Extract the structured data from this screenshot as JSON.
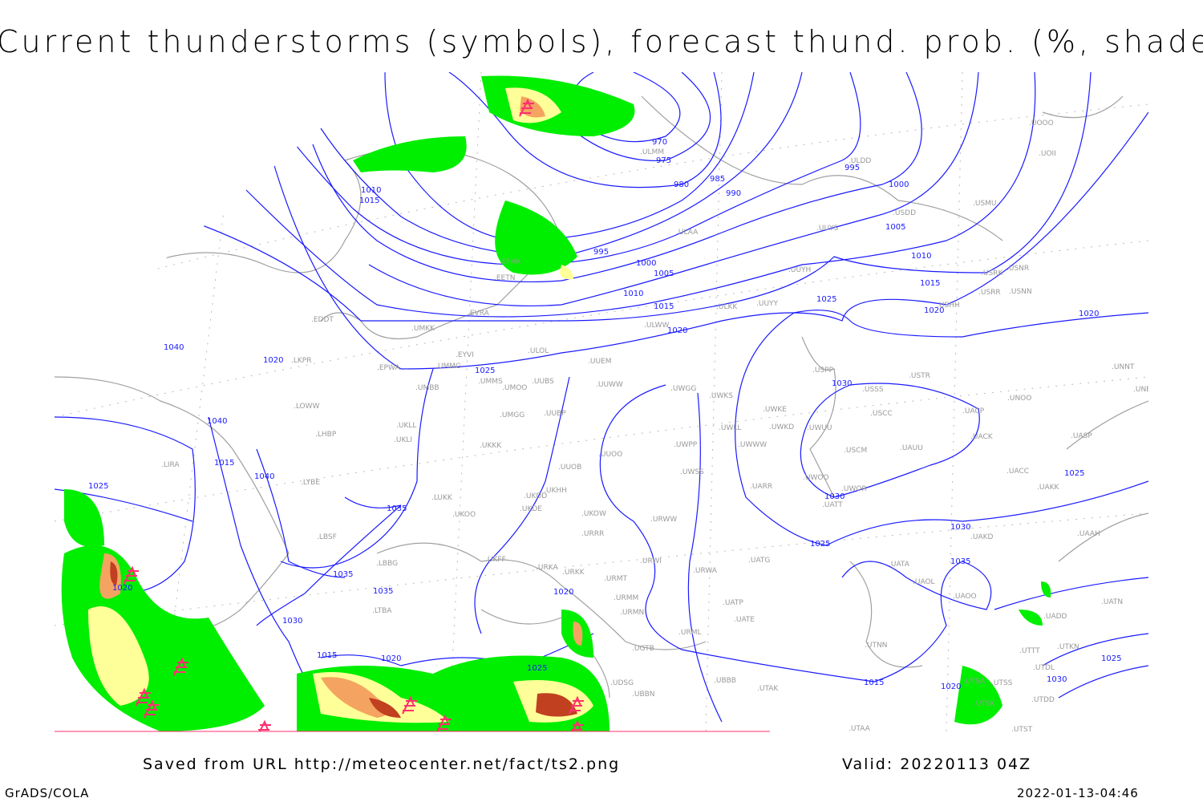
{
  "title": "Current thunderstorms (symbols), forecast thund. prob. (%, shaded)",
  "footer": {
    "source": "Saved from URL http://meteocenter.net/fact/ts2.png",
    "valid": "Valid: 20220113 04Z",
    "software": "GrADS/COLA",
    "timestamp": "2022-01-13-04:46"
  },
  "colors": {
    "isobar": "#1a1aff",
    "coastline": "#a0a0a0",
    "prob_low": "#00ee00",
    "prob_mid": "#ffff99",
    "prob_high": "#f4a460",
    "prob_max": "#c04020",
    "storm_symbol": "#ff3070"
  },
  "isobar_labels": [
    "970",
    "975",
    "980",
    "985",
    "990",
    "995",
    "995",
    "1000",
    "1000",
    "1005",
    "1005",
    "1010",
    "1010",
    "1010",
    "1015",
    "1015",
    "1015",
    "1020",
    "1020",
    "1020",
    "1025",
    "1025",
    "1025",
    "1025",
    "1025",
    "1030",
    "1030",
    "1030",
    "1035",
    "1035",
    "1035",
    "1040",
    "1040",
    "1040",
    "1020",
    "1015",
    "1020",
    "1015",
    "1020",
    "1025",
    "1030",
    "1035",
    "1015",
    "1020",
    "1030",
    "1025",
    "1020"
  ],
  "stations": [
    "ULMM",
    "ULDD",
    "USDD",
    "ULAA",
    "UUYS",
    "UUYH",
    "ULKK",
    "UUYY",
    "USHH",
    "UOOO",
    "UOII",
    "USMU",
    "USRK",
    "USNR",
    "USRR",
    "USNN",
    "EFHK",
    "EETN",
    "EVRA",
    "ULOL",
    "UUEM",
    "ULWW",
    "UMKK",
    "EYVI",
    "EPWA",
    "UMMG",
    "UMMS",
    "UMOO",
    "UUBS",
    "UUWW",
    "UMBB",
    "EDDT",
    "LKPR",
    "LOWW",
    "LHBP",
    "LIRA",
    "LYBE",
    "LBSF",
    "LBBG",
    "LTBA",
    "UKLL",
    "UKLI",
    "UMGG",
    "UUBP",
    "UKKK",
    "UUOB",
    "UUOO",
    "UKHH",
    "UKDD",
    "UKDE",
    "LUKK",
    "UKOO",
    "UKOW",
    "URRR",
    "UKFF",
    "URKA",
    "URKK",
    "URWI",
    "URMT",
    "URMM",
    "URMN",
    "URWA",
    "UATG",
    "UATP",
    "UATE",
    "URML",
    "UBBB",
    "UTAK",
    "UTAA",
    "UWKS",
    "UWGG",
    "UWKE",
    "UWKD",
    "UWLL",
    "UWWW",
    "UWPP",
    "UWSS",
    "URWW",
    "UWUU",
    "USSS",
    "USCC",
    "USCM",
    "UAUU",
    "USTR",
    "USPP",
    "UACP",
    "UACK",
    "UASP",
    "UNOO",
    "UNBB",
    "UNNT",
    "UAKK",
    "UACC",
    "UAAH",
    "UARR",
    "UWOO",
    "UWOR",
    "UATT",
    "UAKD",
    "UATA",
    "UAOL",
    "UAOO",
    "UADD",
    "UATN",
    "UTNN",
    "UTTT",
    "UTKN",
    "UTDL",
    "UTSA",
    "UTSS",
    "UTSK",
    "UTST",
    "UTDD",
    "UGTB",
    "UBBN",
    "UDSG"
  ]
}
